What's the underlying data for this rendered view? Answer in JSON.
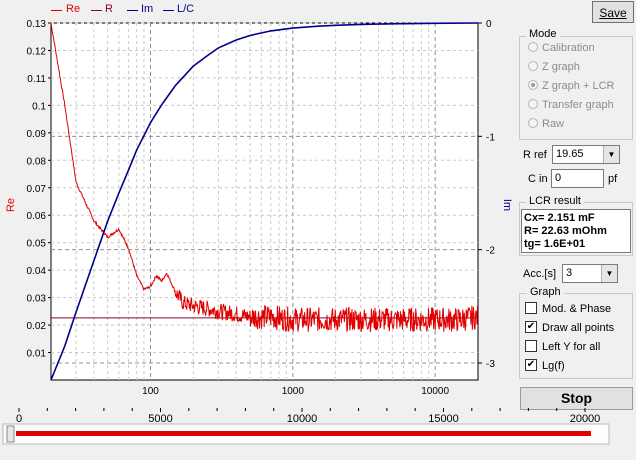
{
  "legend": [
    {
      "label": "Re",
      "color": "#e00000"
    },
    {
      "label": "R",
      "color": "#900030"
    },
    {
      "label": "Im",
      "color": "#00008c"
    },
    {
      "label": "L/C",
      "color": "#00008c"
    }
  ],
  "colors": {
    "re": "#e00000",
    "r": "#8b0030",
    "im": "#00008c",
    "grid": "#a0a0a0"
  },
  "chart_data": {
    "type": "line",
    "left_axis_label": "Re",
    "right_axis_label": "Im",
    "left_ticks": [
      "0.01",
      "0.02",
      "0.03",
      "0.04",
      "0.05",
      "0.06",
      "0.07",
      "0.08",
      "0.09",
      "0.1",
      "0.11",
      "0.12",
      "0.13"
    ],
    "right_ticks": [
      "0",
      "-1",
      "-2",
      "-3"
    ],
    "x_ticks": [
      "100",
      "1000",
      "10000"
    ],
    "x_scale": "log",
    "xlim": [
      20,
      20000
    ],
    "ylim_left": [
      0,
      0.13
    ],
    "ylim_right": [
      -3.15,
      0
    ],
    "series": [
      {
        "name": "Re",
        "x": [
          20,
          25,
          30,
          40,
          50,
          60,
          70,
          80,
          90,
          100,
          110,
          120,
          130,
          150,
          170,
          200,
          250,
          300,
          400,
          500,
          700,
          1000,
          1500,
          2000,
          3000,
          5000,
          7000,
          10000,
          15000,
          20000
        ],
        "y": [
          0.13,
          0.1,
          0.072,
          0.058,
          0.052,
          0.055,
          0.048,
          0.038,
          0.033,
          0.034,
          0.038,
          0.036,
          0.039,
          0.032,
          0.028,
          0.027,
          0.026,
          0.025,
          0.024,
          0.023,
          0.023,
          0.022,
          0.022,
          0.022,
          0.022,
          0.022,
          0.022,
          0.022,
          0.022,
          0.023
        ]
      },
      {
        "name": "R",
        "x": [
          20,
          20000
        ],
        "y": [
          0.0226,
          0.0226
        ]
      },
      {
        "name": "Im",
        "x": [
          20,
          25,
          30,
          40,
          50,
          60,
          70,
          80,
          100,
          120,
          150,
          200,
          250,
          300,
          400,
          500,
          700,
          1000,
          1500,
          2000,
          3000,
          5000,
          10000,
          20000
        ],
        "y": [
          -3.15,
          -2.85,
          -2.55,
          -2.1,
          -1.75,
          -1.5,
          -1.3,
          -1.12,
          -0.88,
          -0.72,
          -0.55,
          -0.38,
          -0.29,
          -0.22,
          -0.15,
          -0.11,
          -0.07,
          -0.045,
          -0.028,
          -0.02,
          -0.012,
          -0.007,
          -0.003,
          0.0
        ]
      }
    ]
  },
  "save_label": "Save",
  "mode": {
    "title": "Mode",
    "options": [
      {
        "label": "Calibration",
        "selected": false
      },
      {
        "label": "Z graph",
        "selected": false
      },
      {
        "label": "Z graph + LCR",
        "selected": true
      },
      {
        "label": "Transfer graph",
        "selected": false
      },
      {
        "label": "Raw",
        "selected": false
      }
    ]
  },
  "rref": {
    "label": "R ref",
    "value": "19.65"
  },
  "cin": {
    "label": "C in",
    "value": "0",
    "unit": "pf"
  },
  "lcr": {
    "title": "LCR result",
    "line1": "Cx= 2.151 mF",
    "line2": "R= 22.63 mOhm",
    "line3": "tg= 1.6E+01"
  },
  "acc": {
    "label": "Acc.[s]",
    "value": "3"
  },
  "graph": {
    "title": "Graph",
    "options": [
      {
        "label": "Mod. & Phase",
        "checked": false
      },
      {
        "label": "Draw all points",
        "checked": true
      },
      {
        "label": "Left Y for all",
        "checked": false
      },
      {
        "label": "Lg(f)",
        "checked": true
      }
    ]
  },
  "stop_label": "Stop",
  "slider": {
    "ticks": [
      "0",
      "5000",
      "10000",
      "15000",
      "20000"
    ],
    "min": 0,
    "max": 20000,
    "value": 20000
  }
}
